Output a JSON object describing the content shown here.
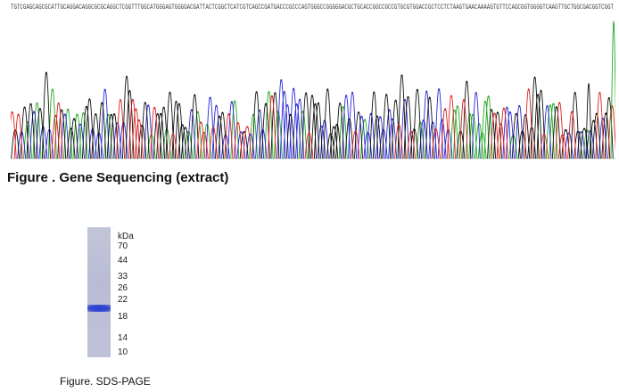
{
  "sequence": "TGTCGAGCAGCGCATTGCAGGACAGGCGCGCAGGCTCGGTTTGGCATGGGAGTGGGGACGATTACTCGGCTCATCGTCAGCCGATGACCCGCCCAGTGGGCCGGGGGACGCTGCACCGGCCGCCGTGCGTGGACCGCTCCTCTAAGTGAACAAAAGTGTTCCAGCGGTGGGGTCAAGTTGCTGGCGACGGTCGGT",
  "trace_colors": {
    "A": "#22aa22",
    "C": "#2a2ad6",
    "G": "#111111",
    "T": "#dd2222"
  },
  "figure_caption_1": "Figure . Gene Sequencing (extract)",
  "gel": {
    "unit": "kDa",
    "markers": [
      "70",
      "44",
      "33",
      "26",
      "22",
      "18",
      "14",
      "10"
    ],
    "band_marker": "18-22"
  },
  "figure_caption_2": "Figure. SDS-PAGE"
}
